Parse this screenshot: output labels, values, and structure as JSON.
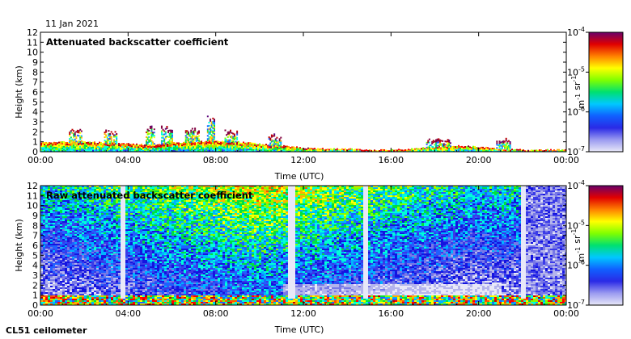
{
  "date_label": "11 Jan 2021",
  "instrument_label": "CL51 ceilometer",
  "colors": {
    "colormap": [
      "#e8e8f8",
      "#b4b4ec",
      "#7878e6",
      "#3a3ae8",
      "#1414e0",
      "#2060ff",
      "#00b4ff",
      "#00ffd8",
      "#00e040",
      "#80ff00",
      "#ffff00",
      "#ffb000",
      "#ff5000",
      "#ff0000",
      "#c00000",
      "#800040",
      "#5a0078"
    ],
    "background": "#ffffff"
  },
  "chart_data": [
    {
      "type": "heatmap",
      "title": "Attenuated backscatter coefficient",
      "xlabel": "Time (UTC)",
      "ylabel": "Height (km)",
      "x_ticks": [
        "00:00",
        "04:00",
        "08:00",
        "12:00",
        "16:00",
        "20:00",
        "00:00"
      ],
      "y_ticks": [
        "0",
        "1",
        "2",
        "3",
        "4",
        "5",
        "6",
        "7",
        "8",
        "9",
        "10",
        "11",
        "12"
      ],
      "xlim_hours": [
        0,
        24
      ],
      "ylim_km": [
        0,
        12
      ],
      "colorbar": {
        "label": "m-1 sr-1",
        "scale": "log",
        "range": [
          1e-07,
          0.0001
        ],
        "ticks": [
          "10-7",
          "10-6",
          "10-5",
          "10-4"
        ]
      },
      "boundary_layer_km": [
        [
          0,
          0.9
        ],
        [
          1,
          1.0
        ],
        [
          2,
          1.0
        ],
        [
          3,
          0.9
        ],
        [
          4,
          0.8
        ],
        [
          5,
          0.7
        ],
        [
          6,
          0.9
        ],
        [
          7,
          1.0
        ],
        [
          8,
          1.1
        ],
        [
          9,
          1.0
        ],
        [
          10,
          0.8
        ],
        [
          11,
          0.6
        ],
        [
          12,
          0.4
        ],
        [
          13,
          0.3
        ],
        [
          14,
          0.3
        ],
        [
          15,
          0.2
        ],
        [
          16,
          0.2
        ],
        [
          17,
          0.3
        ],
        [
          18,
          0.5
        ],
        [
          19,
          0.6
        ],
        [
          20,
          0.5
        ],
        [
          21,
          0.3
        ],
        [
          22,
          0.2
        ],
        [
          23,
          0.2
        ],
        [
          24,
          0.2
        ]
      ],
      "clouds": [
        {
          "start_h": 1.3,
          "end_h": 1.9,
          "height_km": 2.1
        },
        {
          "start_h": 2.9,
          "end_h": 3.5,
          "height_km": 2.0
        },
        {
          "start_h": 4.8,
          "end_h": 5.2,
          "height_km": 2.4
        },
        {
          "start_h": 5.5,
          "end_h": 6.0,
          "height_km": 2.4
        },
        {
          "start_h": 6.6,
          "end_h": 7.2,
          "height_km": 2.2
        },
        {
          "start_h": 7.6,
          "end_h": 7.9,
          "height_km": 3.5
        },
        {
          "start_h": 8.4,
          "end_h": 9.0,
          "height_km": 2.0
        },
        {
          "start_h": 10.4,
          "end_h": 11.0,
          "height_km": 1.6
        },
        {
          "start_h": 17.6,
          "end_h": 18.7,
          "height_km": 1.1
        },
        {
          "start_h": 20.8,
          "end_h": 21.4,
          "height_km": 1.2
        }
      ]
    },
    {
      "type": "heatmap",
      "title": "Raw attenuated backscatter coefficient",
      "xlabel": "Time (UTC)",
      "ylabel": "Height (km)",
      "x_ticks": [
        "00:00",
        "04:00",
        "08:00",
        "12:00",
        "16:00",
        "20:00",
        "00:00"
      ],
      "y_ticks": [
        "0",
        "1",
        "2",
        "3",
        "4",
        "5",
        "6",
        "7",
        "8",
        "9",
        "10",
        "11",
        "12"
      ],
      "xlim_hours": [
        0,
        24
      ],
      "ylim_km": [
        0,
        12
      ],
      "colorbar": {
        "label": "m-1 sr-1",
        "scale": "log",
        "range": [
          1e-07,
          0.0001
        ],
        "ticks": [
          "10-7",
          "10-6",
          "10-5",
          "10-4"
        ]
      },
      "noise_peak_hours": [
        9.5,
        10.5
      ],
      "blank_columns_hours": [
        3.7,
        11.4,
        14.8,
        22.0
      ]
    }
  ]
}
